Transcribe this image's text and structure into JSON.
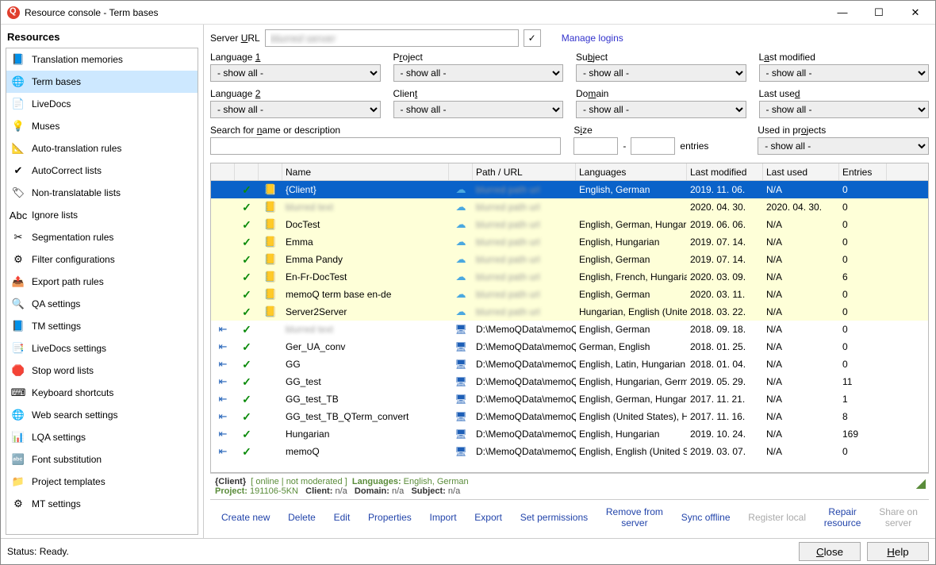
{
  "window": {
    "title": "Resource console - Term bases"
  },
  "titlebar_buttons": {
    "min": "—",
    "max": "☐",
    "close": "✕"
  },
  "sidebar": {
    "header": "Resources",
    "items": [
      {
        "label": "Translation memories",
        "icon": "📘"
      },
      {
        "label": "Term bases",
        "icon": "🌐",
        "selected": true
      },
      {
        "label": "LiveDocs",
        "icon": "📄"
      },
      {
        "label": "Muses",
        "icon": "💡"
      },
      {
        "label": "Auto-translation rules",
        "icon": "📐"
      },
      {
        "label": "AutoCorrect lists",
        "icon": "✔"
      },
      {
        "label": "Non-translatable lists",
        "icon": "🏷"
      },
      {
        "label": "Ignore lists",
        "icon": "Abc"
      },
      {
        "label": "Segmentation rules",
        "icon": "✂"
      },
      {
        "label": "Filter configurations",
        "icon": "⚙"
      },
      {
        "label": "Export path rules",
        "icon": "📤"
      },
      {
        "label": "QA settings",
        "icon": "🔍"
      },
      {
        "label": "TM settings",
        "icon": "📘"
      },
      {
        "label": "LiveDocs settings",
        "icon": "📑"
      },
      {
        "label": "Stop word lists",
        "icon": "🛑"
      },
      {
        "label": "Keyboard shortcuts",
        "icon": "⌨"
      },
      {
        "label": "Web search settings",
        "icon": "🌐"
      },
      {
        "label": "LQA settings",
        "icon": "📊"
      },
      {
        "label": "Font substitution",
        "icon": "🔤"
      },
      {
        "label": "Project templates",
        "icon": "📁"
      },
      {
        "label": "MT settings",
        "icon": "⚙"
      }
    ]
  },
  "server": {
    "label": "Server URL",
    "value": "blurred",
    "check": "✓",
    "manage": "Manage logins"
  },
  "filters": {
    "lang1": {
      "label": "Language 1",
      "value": "- show all -"
    },
    "project": {
      "label": "Project",
      "value": "- show all -"
    },
    "subject": {
      "label": "Subject",
      "value": "- show all -"
    },
    "lastmod": {
      "label": "Last modified",
      "value": "- show all -"
    },
    "lang2": {
      "label": "Language 2",
      "value": "- show all -"
    },
    "client": {
      "label": "Client",
      "value": "- show all -"
    },
    "domain": {
      "label": "Domain",
      "value": "- show all -"
    },
    "lastused": {
      "label": "Last used",
      "value": "- show all -"
    },
    "search": {
      "label": "Search for name or description"
    },
    "size": {
      "label": "Size",
      "suffix": "entries",
      "dash": "-"
    },
    "usedin": {
      "label": "Used in projects",
      "value": "- show all -"
    }
  },
  "grid": {
    "headers": {
      "name": "Name",
      "path": "Path / URL",
      "langs": "Languages",
      "lastmod": "Last modified",
      "lastused": "Last used",
      "entries": "Entries"
    },
    "rows": [
      {
        "pin": "",
        "chk": "✓",
        "tb": "📒",
        "name": "{Client}",
        "loc": "cloud",
        "path": "blurred",
        "langs": "English, German",
        "lastmod": "2019. 11. 06.",
        "lastused": "N/A",
        "entries": "0",
        "selected": true,
        "cloud": true
      },
      {
        "pin": "",
        "chk": "✓",
        "tb": "📒",
        "name": "blurred",
        "loc": "cloud",
        "path": "blurred",
        "langs": "",
        "lastmod": "2020. 04. 30.",
        "lastused": "2020. 04. 30.",
        "entries": "0",
        "cloud": true
      },
      {
        "pin": "",
        "chk": "✓",
        "tb": "📒",
        "name": "DocTest",
        "loc": "cloud",
        "path": "blurred",
        "langs": "English, German, Hungarian",
        "lastmod": "2019. 06. 06.",
        "lastused": "N/A",
        "entries": "0",
        "cloud": true
      },
      {
        "pin": "",
        "chk": "✓",
        "tb": "📒",
        "name": "Emma",
        "loc": "cloud",
        "path": "blurred",
        "langs": "English, Hungarian",
        "lastmod": "2019. 07. 14.",
        "lastused": "N/A",
        "entries": "0",
        "cloud": true
      },
      {
        "pin": "",
        "chk": "✓",
        "tb": "📒",
        "name": "Emma Pandy",
        "loc": "cloud",
        "path": "blurred",
        "langs": "English, German",
        "lastmod": "2019. 07. 14.",
        "lastused": "N/A",
        "entries": "0",
        "cloud": true
      },
      {
        "pin": "",
        "chk": "✓",
        "tb": "📒",
        "name": "En-Fr-DocTest",
        "loc": "cloud",
        "path": "blurred",
        "langs": "English, French, Hungarian",
        "lastmod": "2020. 03. 09.",
        "lastused": "N/A",
        "entries": "6",
        "cloud": true
      },
      {
        "pin": "",
        "chk": "✓",
        "tb": "📒",
        "name": "memoQ term base en-de",
        "loc": "cloud",
        "path": "blurred",
        "langs": "English, German",
        "lastmod": "2020. 03. 11.",
        "lastused": "N/A",
        "entries": "0",
        "cloud": true
      },
      {
        "pin": "",
        "chk": "✓",
        "tb": "📒",
        "name": "Server2Server",
        "loc": "cloud",
        "path": "blurred",
        "langs": "Hungarian, English (Unite...",
        "lastmod": "2018. 03. 22.",
        "lastused": "N/A",
        "entries": "0",
        "cloud": true
      },
      {
        "pin": "⇤",
        "chk": "✓",
        "tb": "",
        "name": "blurred",
        "loc": "pc",
        "path": "D:\\MemoQData\\memoQ\\...",
        "langs": "English, German",
        "lastmod": "2018. 09. 18.",
        "lastused": "N/A",
        "entries": "0"
      },
      {
        "pin": "⇤",
        "chk": "✓",
        "tb": "",
        "name": "Ger_UA_conv",
        "loc": "pc",
        "path": "D:\\MemoQData\\memoQ\\...",
        "langs": "German, English",
        "lastmod": "2018. 01. 25.",
        "lastused": "N/A",
        "entries": "0"
      },
      {
        "pin": "⇤",
        "chk": "✓",
        "tb": "",
        "name": "GG",
        "loc": "pc",
        "path": "D:\\MemoQData\\memoQ\\...",
        "langs": "English, Latin, Hungarian",
        "lastmod": "2018. 01. 04.",
        "lastused": "N/A",
        "entries": "0"
      },
      {
        "pin": "⇤",
        "chk": "✓",
        "tb": "",
        "name": "GG_test",
        "loc": "pc",
        "path": "D:\\MemoQData\\memoQ\\...",
        "langs": "English, Hungarian, Germ...",
        "lastmod": "2019. 05. 29.",
        "lastused": "N/A",
        "entries": "11"
      },
      {
        "pin": "⇤",
        "chk": "✓",
        "tb": "",
        "name": "GG_test_TB",
        "loc": "pc",
        "path": "D:\\MemoQData\\memoQ\\...",
        "langs": "English, German, Hungari...",
        "lastmod": "2017. 11. 21.",
        "lastused": "N/A",
        "entries": "1"
      },
      {
        "pin": "⇤",
        "chk": "✓",
        "tb": "",
        "name": "GG_test_TB_QTerm_convert",
        "loc": "pc",
        "path": "D:\\MemoQData\\memoQ\\...",
        "langs": "English (United States), H...",
        "lastmod": "2017. 11. 16.",
        "lastused": "N/A",
        "entries": "8"
      },
      {
        "pin": "⇤",
        "chk": "✓",
        "tb": "",
        "name": "Hungarian",
        "loc": "pc",
        "path": "D:\\MemoQData\\memoQ\\...",
        "langs": "English, Hungarian",
        "lastmod": "2019. 10. 24.",
        "lastused": "N/A",
        "entries": "169"
      },
      {
        "pin": "⇤",
        "chk": "✓",
        "tb": "",
        "name": "memoQ",
        "loc": "pc",
        "path": "D:\\MemoQData\\memoQ\\...",
        "langs": "English, English (United St...",
        "lastmod": "2019. 03. 07.",
        "lastused": "N/A",
        "entries": "0"
      }
    ]
  },
  "info": {
    "name": "{Client}",
    "status": "[ online | not moderated ]",
    "langs_lbl": "Languages:",
    "langs": "English, German",
    "proj_lbl": "Project:",
    "proj": "191106-5KN",
    "client_lbl": "Client:",
    "client": "n/a",
    "domain_lbl": "Domain:",
    "domain": "n/a",
    "subject_lbl": "Subject:",
    "subject": "n/a"
  },
  "actions": {
    "create": "Create new",
    "delete": "Delete",
    "edit": "Edit",
    "props": "Properties",
    "import": "Import",
    "export": "Export",
    "setperm": "Set permissions",
    "remove": "Remove from server",
    "syncoff": "Sync offline",
    "reglocal": "Register local",
    "repair": "Repair resource",
    "share": "Share on server"
  },
  "status": {
    "text": "Status: Ready.",
    "close": "Close",
    "help": "Help"
  }
}
